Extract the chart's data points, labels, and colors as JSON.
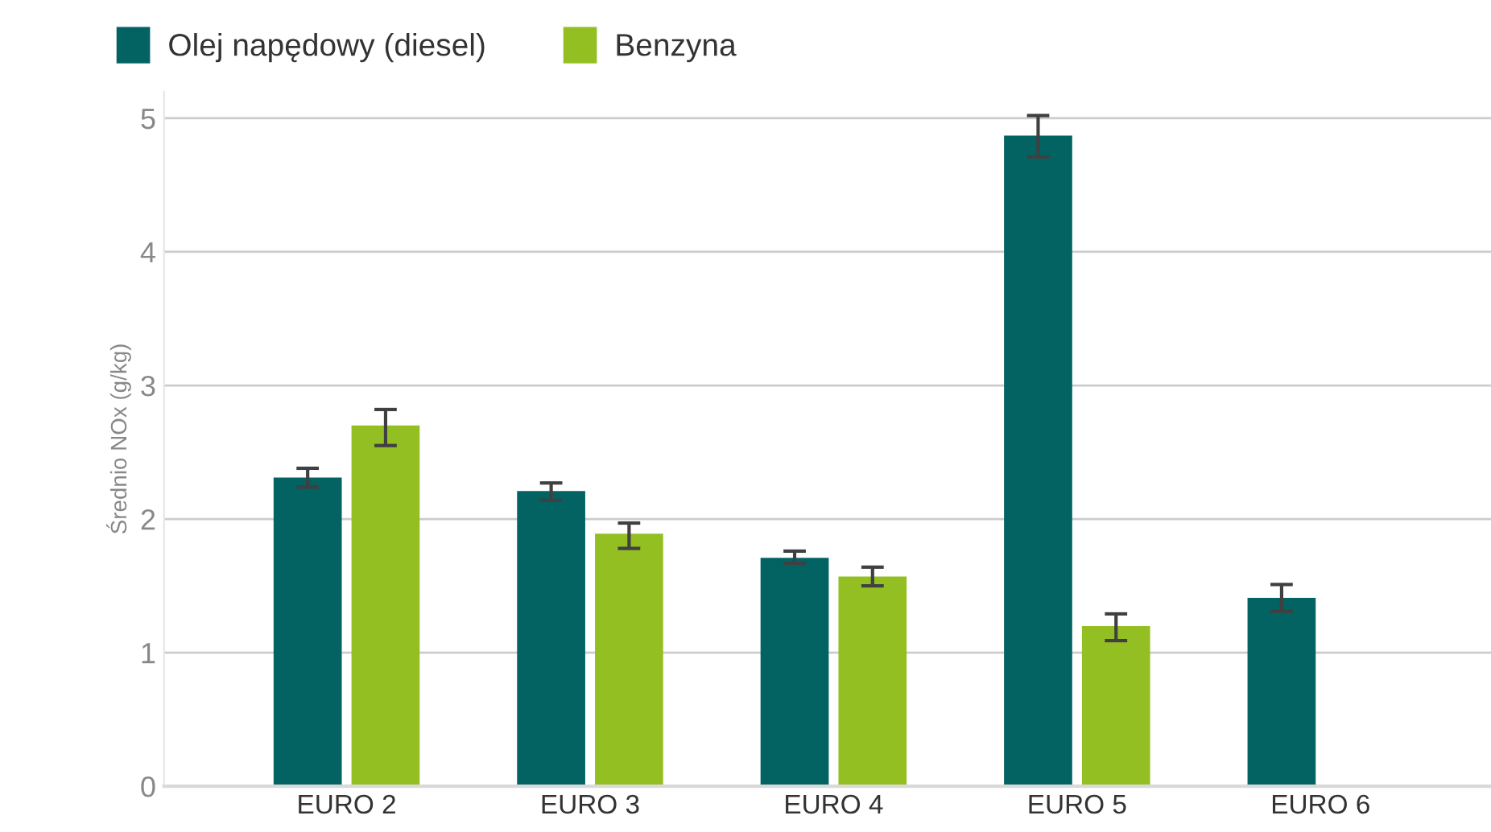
{
  "chart_data": {
    "type": "bar",
    "ylabel": "Średnio NOx (g/kg)",
    "categories": [
      "EURO 2",
      "EURO 3",
      "EURO 4",
      "EURO 5",
      "EURO 6"
    ],
    "series": [
      {
        "name": "Olej napędowy (diesel)",
        "color": "#036363",
        "values": [
          2.31,
          2.21,
          1.71,
          4.87,
          1.41
        ],
        "errors": [
          [
            2.24,
            2.38
          ],
          [
            2.14,
            2.27
          ],
          [
            1.67,
            1.76
          ],
          [
            4.71,
            5.02
          ],
          [
            1.31,
            1.51
          ]
        ]
      },
      {
        "name": "Benzyna",
        "color": "#93bf22",
        "values": [
          2.7,
          1.89,
          1.57,
          1.2,
          0
        ],
        "errors": [
          [
            2.55,
            2.82
          ],
          [
            1.78,
            1.97
          ],
          [
            1.5,
            1.64
          ],
          [
            1.09,
            1.29
          ],
          null
        ]
      }
    ],
    "ylim": [
      0,
      5.2
    ],
    "yticks": [
      0,
      1,
      2,
      3,
      4,
      5
    ],
    "grid": "y",
    "legend": "top left"
  }
}
